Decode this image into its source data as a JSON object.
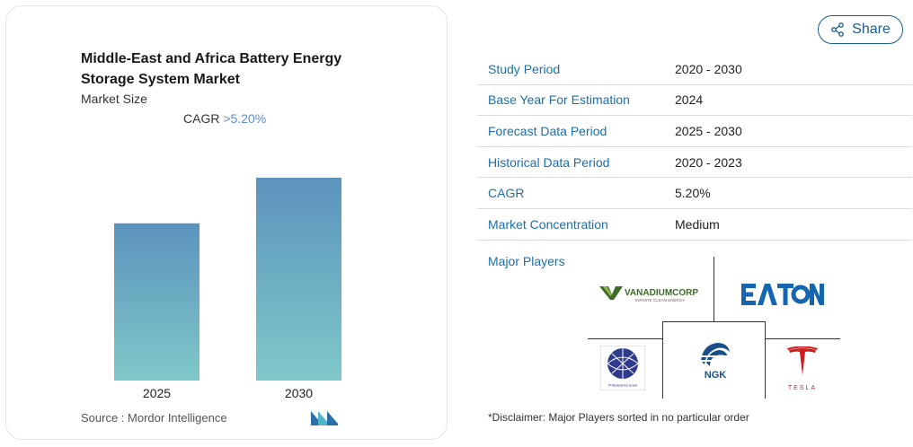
{
  "chart": {
    "title": "Middle-East and Africa Battery Energy Storage System Market",
    "subtitle": "Market Size",
    "cagr_label": "CAGR ",
    "cagr_value": ">5.20%",
    "source": "Source :  Mordor Intelligence"
  },
  "chart_data": {
    "type": "bar",
    "categories": [
      "2025",
      "2030"
    ],
    "values": [
      1,
      1.29
    ],
    "title": "Middle-East and Africa Battery Energy Storage System Market",
    "xlabel": "",
    "ylabel": "",
    "colors": [
      "#5b93bd",
      "#7fc8c8"
    ]
  },
  "share": {
    "label": "Share"
  },
  "info": {
    "rows": [
      {
        "label": "Study Period",
        "value": "2020 - 2030"
      },
      {
        "label": "Base Year For Estimation",
        "value": "2024"
      },
      {
        "label": "Forecast Data Period",
        "value": "2025 - 2030"
      },
      {
        "label": "Historical Data Period",
        "value": "2020 - 2023"
      },
      {
        "label": "CAGR",
        "value": "5.20%"
      },
      {
        "label": "Market Concentration",
        "value": "Medium"
      }
    ]
  },
  "players": {
    "label": "Major Players",
    "logos": {
      "vanadium": "VANADIUMCORP",
      "vanadium_tag": "INFINITE CLEAN ENERGY",
      "eaton": "E·T·N",
      "ngk": "NGK",
      "tesla": "TESLA",
      "philadelphia": "Philadelphia Solar"
    },
    "disclaimer": "*Disclaimer: Major Players sorted in no particular order"
  }
}
